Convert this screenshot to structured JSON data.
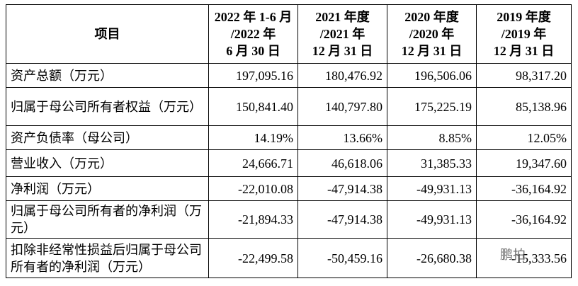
{
  "table": {
    "header": [
      [
        "项目"
      ],
      [
        "2022 年 1-6 月",
        "/2022 年",
        "6 月 30 日"
      ],
      [
        "2021 年度",
        "/2021 年",
        "12 月 31 日"
      ],
      [
        "2020 年度",
        "/2020 年",
        "12 月 31 日"
      ],
      [
        "2019 年度",
        "/2019 年",
        "12 月 31 日"
      ]
    ],
    "rows": [
      [
        "资产总额（万元）",
        "197,095.16",
        "180,476.92",
        "196,506.06",
        "98,317.20"
      ],
      [
        "归属于母公司所有者权益（万元）",
        "150,841.40",
        "140,797.80",
        "175,225.19",
        "85,138.96"
      ],
      [
        "资产负债率（母公司）",
        "14.19%",
        "13.66%",
        "8.85%",
        "12.05%"
      ],
      [
        "营业收入（万元）",
        "24,666.71",
        "46,618.06",
        "31,385.33",
        "19,347.60"
      ],
      [
        "净利润（万元）",
        "-22,010.08",
        "-47,914.38",
        "-49,931.13",
        "-36,164.92"
      ],
      [
        "归属于母公司所有者的净利润（万元）",
        "-21,894.33",
        "-47,914.38",
        "-49,931.13",
        "-36,164.92"
      ],
      [
        "扣除非经常性损益后归属于母公司所有者的净利润（万元）",
        "-22,499.58",
        "-50,459.16",
        "-26,680.38",
        "-15,333.56"
      ]
    ]
  },
  "watermark": "鹏拍"
}
